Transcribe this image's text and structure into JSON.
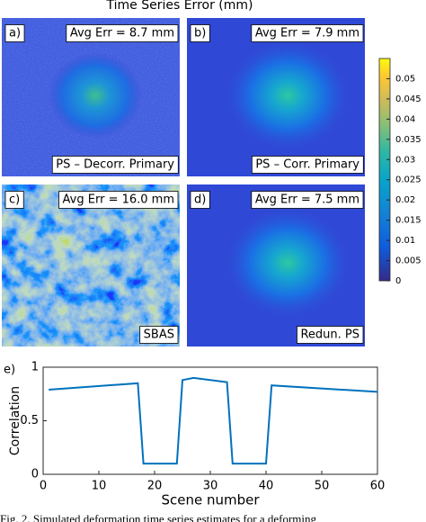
{
  "figure_title": "Time Series Error (mm)",
  "panels": [
    {
      "tag": "a)",
      "avg": "Avg Err = 8.7 mm",
      "method": "PS – Decorr. Primary"
    },
    {
      "tag": "b)",
      "avg": "Avg Err = 7.9 mm",
      "method": "PS – Corr. Primary"
    },
    {
      "tag": "c)",
      "avg": "Avg Err = 16.0 mm",
      "method": "SBAS"
    },
    {
      "tag": "d)",
      "avg": "Avg Err = 7.5 mm",
      "method": "Redun. PS"
    }
  ],
  "colorbar": {
    "lim": [
      0,
      0.055
    ],
    "ticks": [
      0,
      0.005,
      0.01,
      0.015,
      0.02,
      0.025,
      0.03,
      0.035,
      0.04,
      0.045,
      0.05
    ]
  },
  "chart_data": {
    "type": "line",
    "tag": "e)",
    "xlabel": "Scene number",
    "ylabel": "Correlation",
    "x": [
      1,
      17,
      18,
      24,
      25,
      27,
      33,
      34,
      40,
      41,
      60
    ],
    "series": [
      {
        "color": "#0072bd",
        "values": [
          0.79,
          0.85,
          0.1,
          0.1,
          0.88,
          0.9,
          0.86,
          0.1,
          0.1,
          0.83,
          0.77
        ]
      }
    ],
    "xlim": [
      0,
      60
    ],
    "xticks": [
      0,
      10,
      20,
      30,
      40,
      50,
      60
    ],
    "ylim": [
      0,
      1
    ],
    "yticks": [
      0,
      0.5,
      1
    ]
  },
  "caption": "Fig. 2. Simulated deformation time series estimates for a deforming"
}
